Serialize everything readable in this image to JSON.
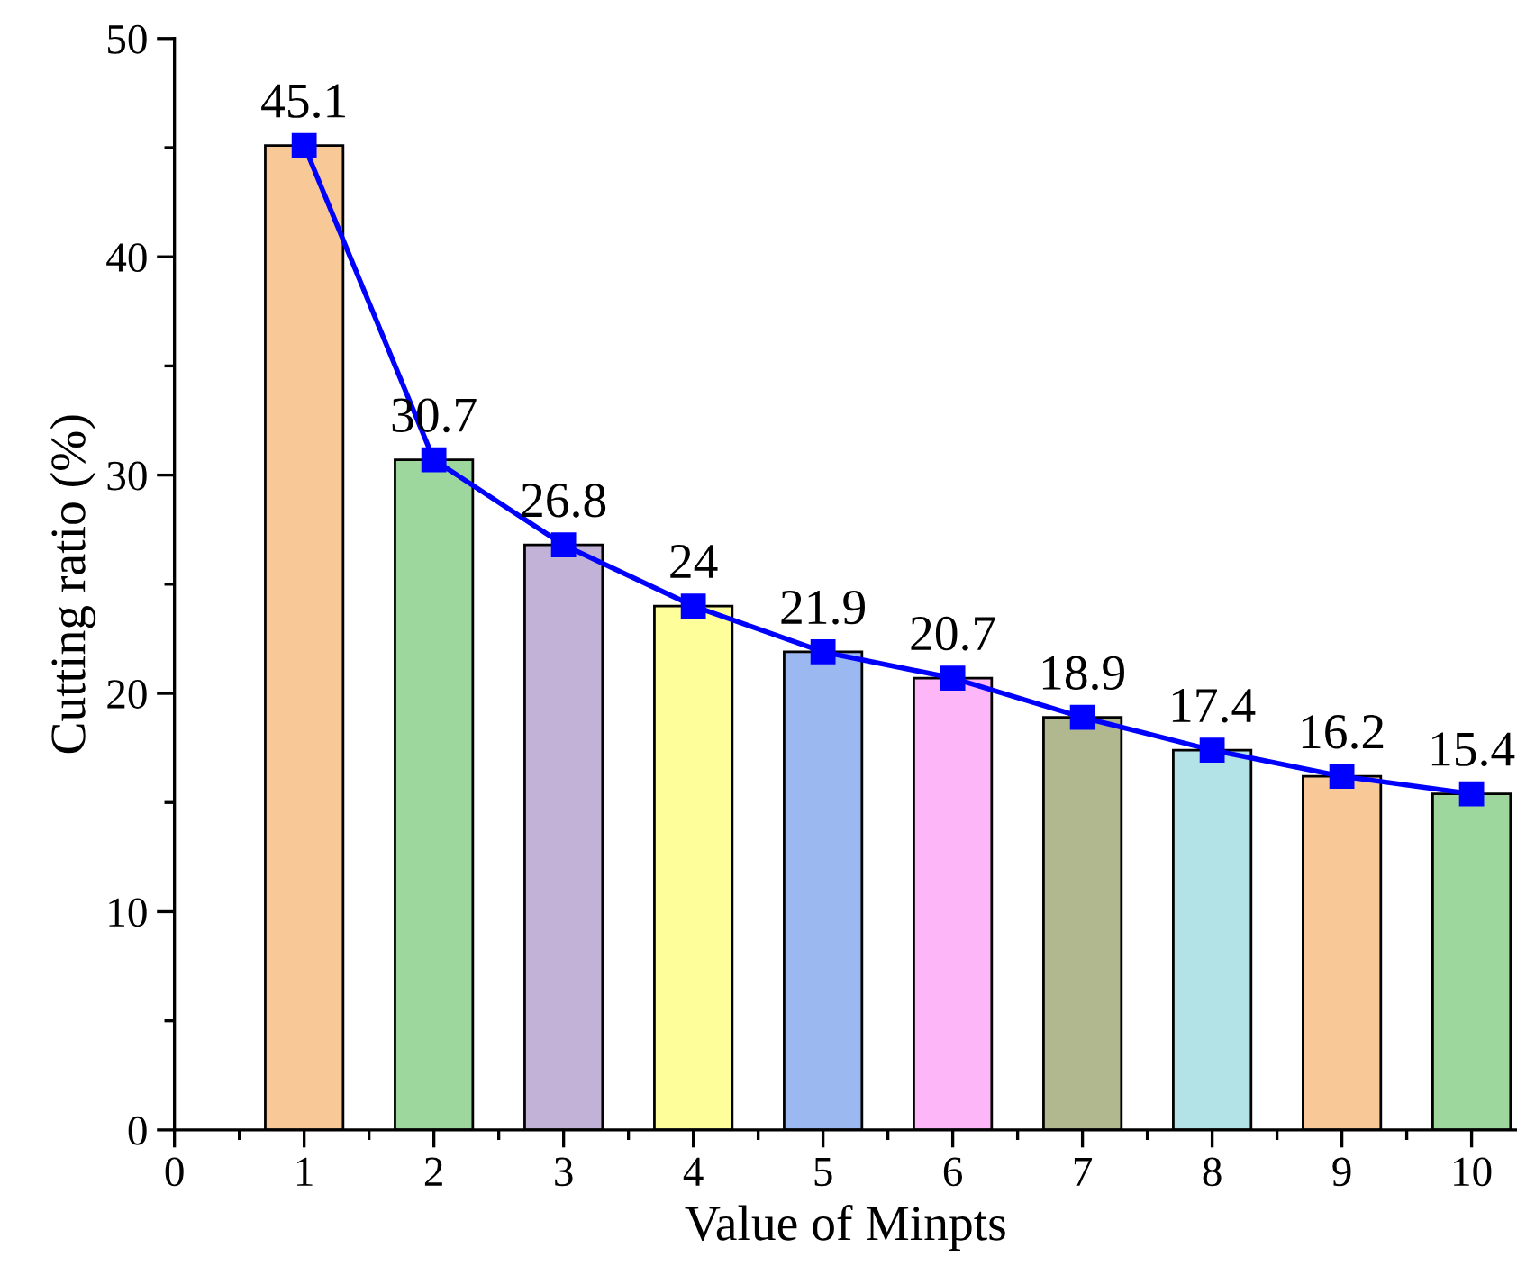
{
  "chart_data": {
    "type": "bar",
    "xlabel": "Value of Minpts",
    "ylabel": "Cutting ratio (%)",
    "x": [
      1,
      2,
      3,
      4,
      5,
      6,
      7,
      8,
      9,
      10
    ],
    "series": [
      {
        "values": [
          45.1,
          30.7,
          26.8,
          24,
          21.9,
          20.7,
          18.9,
          17.4,
          16.2,
          15.4
        ],
        "value_labels": [
          "45.1",
          "30.7",
          "26.8",
          "24",
          "21.9",
          "20.7",
          "18.9",
          "17.4",
          "16.2",
          "15.4"
        ],
        "colors": [
          "#f9c897",
          "#9dd79d",
          "#c2b2d7",
          "#fefe9a",
          "#9bb9f0",
          "#fdb7f9",
          "#b1b890",
          "#b4e3e7",
          "#f9c897",
          "#9dd79d"
        ]
      },
      {
        "type": "line",
        "color": "#0000ff",
        "values": [
          45.1,
          30.7,
          26.8,
          24,
          21.9,
          20.7,
          18.9,
          17.4,
          16.2,
          15.4
        ],
        "marker": "square",
        "line_style": "solid"
      }
    ],
    "xlim": [
      0,
      10.35
    ],
    "xticks": [
      0,
      1,
      2,
      3,
      4,
      5,
      6,
      7,
      8,
      9,
      10
    ],
    "ylim": [
      0,
      50
    ],
    "yticks": [
      0,
      10,
      20,
      30,
      40,
      50
    ],
    "grid": false,
    "legend": false
  }
}
